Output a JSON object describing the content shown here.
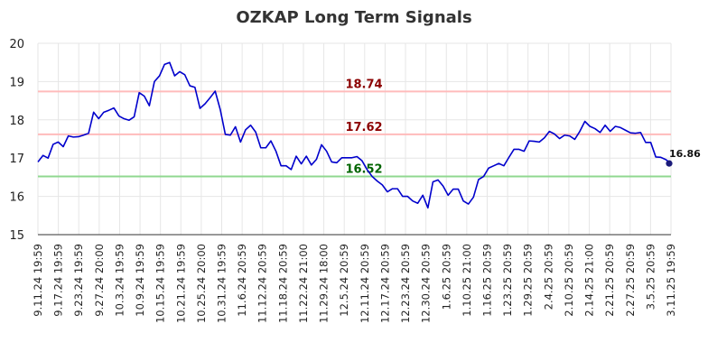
{
  "chart_data": {
    "type": "line",
    "title": "OZKAP Long Term Signals",
    "xlabel": "",
    "ylabel": "",
    "ylim": [
      15,
      20
    ],
    "yticks": [
      15,
      16,
      17,
      18,
      19,
      20
    ],
    "grid": true,
    "x_tick_labels": [
      "9.11.24 19:59",
      "9.17.24 19:59",
      "9.23.24 19:59",
      "9.27.24 20:00",
      "10.3.24 19:59",
      "10.9.24 19:59",
      "10.15.24 19:59",
      "10.21.24 19:59",
      "10.25.24 20:00",
      "10.31.24 19:59",
      "11.6.24 20:59",
      "11.12.24 20:59",
      "11.18.24 20:59",
      "11.22.24 21:00",
      "11.29.24 18:00",
      "12.5.24 20:59",
      "12.11.24 20:59",
      "12.17.24 20:59",
      "12.23.24 20:59",
      "12.30.24 20:59",
      "1.6.25 20:59",
      "1.10.25 21:00",
      "1.16.25 20:59",
      "1.23.25 20:59",
      "1.29.25 20:59",
      "2.4.25 20:59",
      "2.10.25 20:59",
      "2.14.25 21:00",
      "2.21.25 20:59",
      "2.27.25 20:59",
      "3.5.25 20:59",
      "3.11.25 19:59"
    ],
    "series": [
      {
        "color": "#0000cc",
        "values": [
          16.9,
          17.07,
          17.0,
          17.36,
          17.42,
          17.3,
          17.58,
          17.55,
          17.56,
          17.6,
          17.65,
          18.2,
          18.03,
          18.2,
          18.25,
          18.31,
          18.1,
          18.03,
          17.99,
          18.08,
          18.71,
          18.62,
          18.37,
          19.0,
          19.15,
          19.45,
          19.5,
          19.15,
          19.26,
          19.18,
          18.89,
          18.85,
          18.3,
          18.42,
          18.58,
          18.75,
          18.27,
          17.62,
          17.6,
          17.82,
          17.42,
          17.74,
          17.86,
          17.68,
          17.27,
          17.27,
          17.45,
          17.18,
          16.8,
          16.8,
          16.7,
          17.05,
          16.85,
          17.05,
          16.82,
          16.97,
          17.35,
          17.18,
          16.9,
          16.88,
          17.01,
          17.01,
          17.01,
          17.04,
          16.93,
          16.7,
          16.52,
          16.4,
          16.3,
          16.12,
          16.2,
          16.2,
          16.0,
          16.0,
          15.88,
          15.82,
          16.03,
          15.7,
          16.38,
          16.43,
          16.27,
          16.03,
          16.19,
          16.19,
          15.88,
          15.8,
          15.98,
          16.44,
          16.52,
          16.74,
          16.8,
          16.86,
          16.8,
          17.02,
          17.23,
          17.23,
          17.18,
          17.45,
          17.44,
          17.42,
          17.53,
          17.7,
          17.63,
          17.51,
          17.6,
          17.58,
          17.49,
          17.7,
          17.96,
          17.83,
          17.77,
          17.67,
          17.86,
          17.7,
          17.83,
          17.8,
          17.73,
          17.66,
          17.65,
          17.67,
          17.41,
          17.41,
          17.03,
          17.02,
          16.96,
          16.86
        ]
      }
    ],
    "signals": [
      {
        "value": 18.74,
        "label": "18.74",
        "line_color": "#ffbbbb",
        "text_color": "#8b0000"
      },
      {
        "value": 17.62,
        "label": "17.62",
        "line_color": "#ffbbbb",
        "text_color": "#8b0000"
      },
      {
        "value": 16.52,
        "label": "16.52",
        "line_color": "#90d890",
        "text_color": "#006400"
      }
    ],
    "last_value_label": "16.86"
  }
}
